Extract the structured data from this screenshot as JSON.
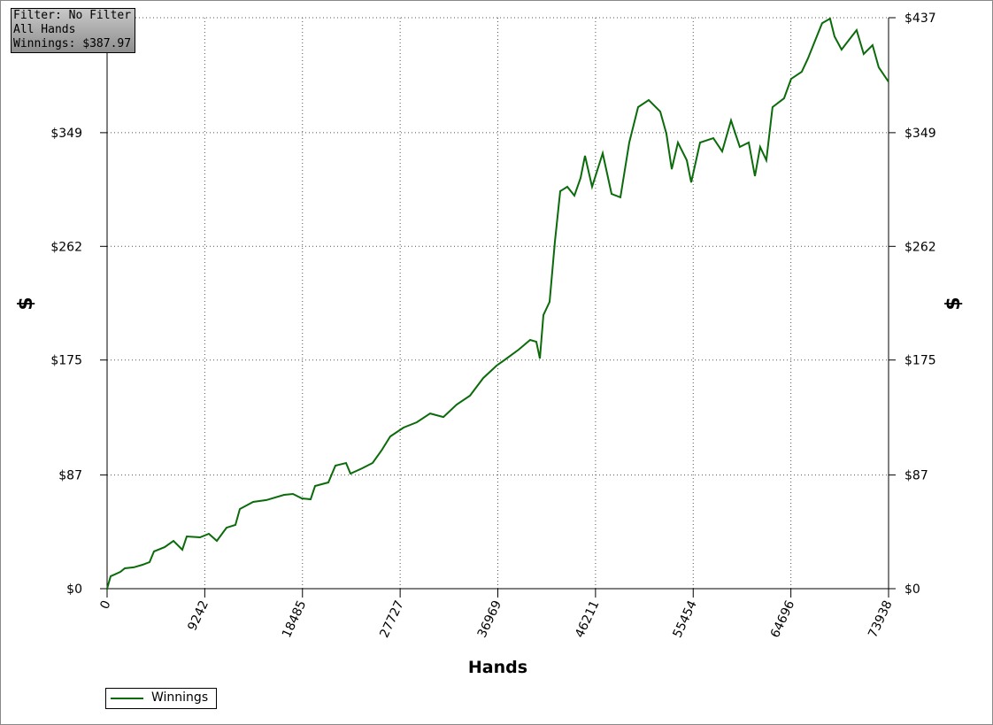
{
  "chart_data": {
    "type": "line",
    "info_box": [
      "Filter: No Filter",
      "All Hands",
      "Winnings: $387.97"
    ],
    "x_label": "Hands",
    "y_label": "$",
    "x": [
      0,
      335,
      1256,
      1675,
      2512,
      3349,
      4019,
      4438,
      5443,
      6280,
      7117,
      7536,
      8792,
      9630,
      10383,
      11304,
      12141,
      12560,
      13816,
      15072,
      16747,
      17584,
      18421,
      19258,
      19676,
      20932,
      21602,
      22607,
      23025,
      24113,
      25118,
      25955,
      26793,
      28049,
      29305,
      30561,
      31817,
      33073,
      34329,
      35585,
      36841,
      37678,
      38934,
      40023,
      40609,
      40944,
      41279,
      41865,
      42368,
      42870,
      43540,
      44210,
      44796,
      45215,
      45885,
      46890,
      47727,
      48564,
      49402,
      50239,
      51243,
      52332,
      52918,
      53420,
      54006,
      54843,
      55262,
      56099,
      57355,
      58192,
      59029,
      59866,
      60704,
      61290,
      61792,
      62378,
      62964,
      64053,
      64722,
      65727,
      66313,
      66983,
      67653,
      68406,
      68825,
      69495,
      70332,
      70918,
      71588,
      72425,
      73011,
      73938
    ],
    "series": [
      {
        "name": "Winnings",
        "color": "#0b6b0b",
        "values": [
          0,
          9.5,
          12.9,
          15.6,
          16.3,
          18.3,
          20.3,
          28.5,
          31.8,
          36.6,
          29.8,
          40.0,
          39.3,
          42.0,
          36.6,
          46.7,
          48.8,
          61.0,
          66.4,
          67.8,
          71.8,
          72.5,
          69.1,
          68.4,
          78.6,
          81.3,
          94.2,
          96.2,
          88.1,
          92.1,
          96.2,
          105.7,
          116.5,
          123.3,
          127.4,
          134.1,
          131.4,
          140.9,
          147.7,
          161.2,
          170.7,
          175.5,
          182.9,
          190.4,
          189.0,
          176.1,
          209.4,
          219.5,
          265.6,
          304.2,
          307.6,
          300.8,
          314.3,
          331.3,
          307.6,
          333.3,
          302.2,
          299.5,
          341.5,
          368.6,
          374.0,
          365.2,
          348.2,
          321.1,
          341.5,
          327.9,
          311.0,
          341.5,
          344.8,
          334.7,
          358.4,
          338.1,
          341.5,
          315.7,
          338.1,
          327.9,
          368.6,
          375.3,
          390.2,
          395.6,
          405.8,
          419.3,
          432.8,
          436.3,
          422.7,
          412.6,
          421.4,
          427.5,
          409.2,
          416.0,
          399.0,
          387.97
        ]
      }
    ],
    "xlim": [
      0,
      73938
    ],
    "xticks": [
      0,
      9242,
      18485,
      27727,
      36969,
      46211,
      55454,
      64696,
      73938
    ],
    "ylim": [
      0,
      437
    ],
    "yticks": [
      {
        "value": 0,
        "label": "$0"
      },
      {
        "value": 87,
        "label": "$87"
      },
      {
        "value": 175,
        "label": "$175"
      },
      {
        "value": 262,
        "label": "$262"
      },
      {
        "value": 349,
        "label": "$349"
      },
      {
        "value": 437,
        "label": "$437"
      }
    ],
    "grid": true,
    "legend": "bottom-left"
  }
}
